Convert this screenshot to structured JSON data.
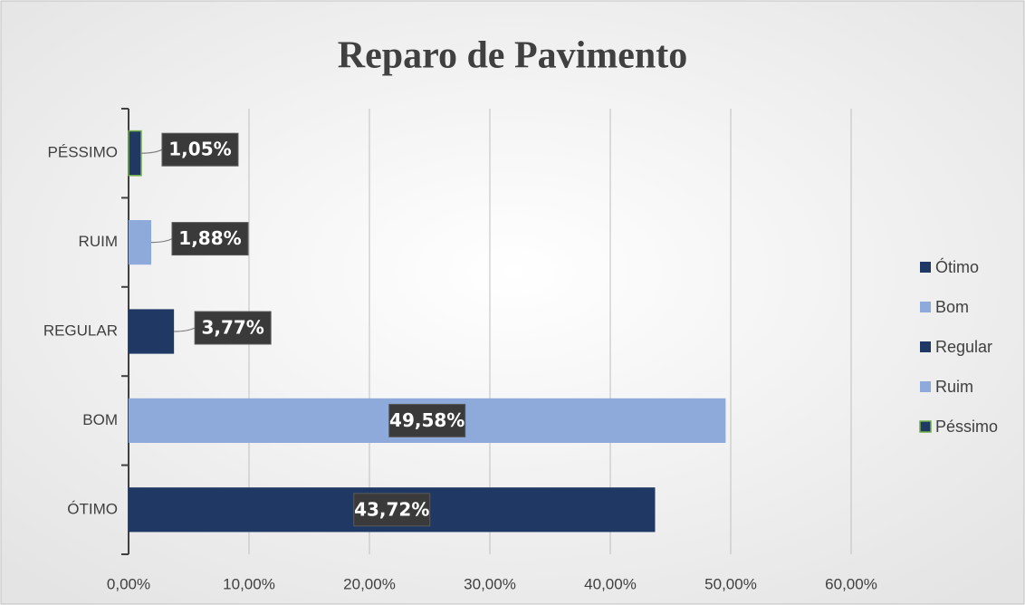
{
  "chart_data": {
    "type": "bar",
    "orientation": "horizontal",
    "title": "Reparo de Pavimento",
    "categories": [
      "ÓTIMO",
      "BOM",
      "REGULAR",
      "RUIM",
      "PÉSSIMO"
    ],
    "series": [
      {
        "name": "Ótimo",
        "color": "#1f3864",
        "values": [
          43.72,
          null,
          null,
          null,
          null
        ],
        "value_labels": [
          "43,72%",
          null,
          null,
          null,
          null
        ]
      },
      {
        "name": "Bom",
        "color": "#8eaadb",
        "values": [
          null,
          49.58,
          null,
          null,
          null
        ],
        "value_labels": [
          null,
          "49,58%",
          null,
          null,
          null
        ]
      },
      {
        "name": "Regular",
        "color": "#1f3864",
        "values": [
          null,
          null,
          3.77,
          null,
          null
        ],
        "value_labels": [
          null,
          null,
          "3,77%",
          null,
          null
        ]
      },
      {
        "name": "Ruim",
        "color": "#8eaadb",
        "values": [
          null,
          null,
          null,
          1.88,
          null
        ],
        "value_labels": [
          null,
          null,
          null,
          "1,88%",
          null
        ]
      },
      {
        "name": "Péssimo",
        "color": "#1f3864",
        "edge_color": "#70ad47",
        "values": [
          null,
          null,
          null,
          null,
          1.05
        ],
        "value_labels": [
          null,
          null,
          null,
          null,
          "1,05%"
        ]
      }
    ],
    "xlim": [
      0,
      60
    ],
    "xticks": [
      {
        "value": 0,
        "label": "0,00%"
      },
      {
        "value": 10,
        "label": "10,00%"
      },
      {
        "value": 20,
        "label": "20,00%"
      },
      {
        "value": 30,
        "label": "30,00%"
      },
      {
        "value": 40,
        "label": "40,00%"
      },
      {
        "value": 50,
        "label": "50,00%"
      },
      {
        "value": 60,
        "label": "60,00%"
      }
    ],
    "grid": true,
    "legend": "right"
  }
}
